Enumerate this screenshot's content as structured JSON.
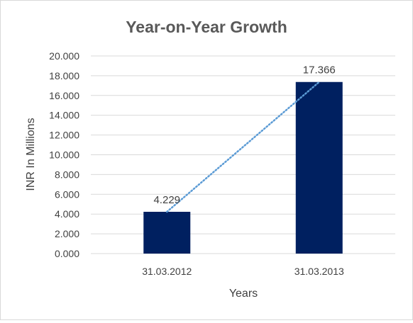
{
  "chart_data": {
    "type": "bar",
    "title": "Year-on-Year Growth",
    "xlabel": "Years",
    "ylabel": "INR In Millions",
    "categories": [
      "31.03.2012",
      "31.03.2013"
    ],
    "values": [
      4.229,
      17.366
    ],
    "data_labels": [
      "4.229",
      "17.366"
    ],
    "ylim": [
      0,
      20
    ],
    "yticks": [
      0,
      2,
      4,
      6,
      8,
      10,
      12,
      14,
      16,
      18,
      20
    ],
    "ytick_labels": [
      "0.000",
      "2.000",
      "4.000",
      "6.000",
      "8.000",
      "10.000",
      "12.000",
      "14.000",
      "16.000",
      "18.000",
      "20.000"
    ],
    "grid": true,
    "trendline": "linear, dotted",
    "colors": {
      "bar": "#002060",
      "trendline": "#5b9bd5",
      "grid": "#d9d9d9",
      "text": "#404040",
      "title": "#595959"
    }
  }
}
